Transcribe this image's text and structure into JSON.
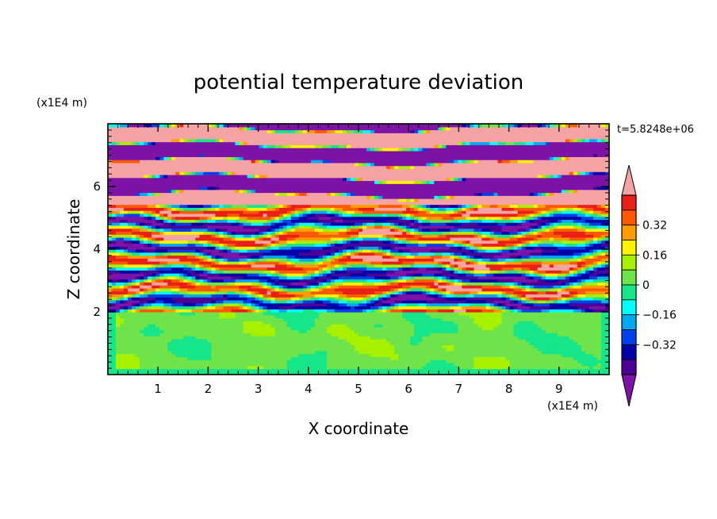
{
  "chart_data": {
    "type": "heatmap",
    "title": "potential temperature deviation",
    "time_label": "t=5.8248e+06",
    "xlabel": "X coordinate",
    "ylabel": "Z coordinate",
    "x_unit": "(x1E4 m)",
    "y_unit": "(x1E4 m)",
    "xlim": [
      0,
      10
    ],
    "ylim": [
      0,
      8
    ],
    "x_ticks": [
      "1",
      "2",
      "3",
      "4",
      "5",
      "6",
      "7",
      "8",
      "9"
    ],
    "y_ticks": [
      "2",
      "4",
      "6"
    ],
    "colorbar": {
      "levels": [
        -0.48,
        -0.4,
        -0.32,
        -0.24,
        -0.16,
        -0.08,
        0,
        0.08,
        0.16,
        0.24,
        0.32,
        0.4,
        0.48
      ],
      "tick_labels": [
        "0.32",
        "0.16",
        "0",
        "−0.16",
        "−0.32"
      ],
      "tick_values": [
        0.32,
        0.16,
        0,
        -0.16,
        -0.32
      ],
      "colors_high_to_low": [
        "#F5A3A3",
        "#E82018",
        "#FF5A00",
        "#FF9D00",
        "#FFF200",
        "#A6F000",
        "#6EE44A",
        "#16E58A",
        "#00FFFF",
        "#00A8F0",
        "#0040E8",
        "#0000A8",
        "#4B0096",
        "#7C13A6"
      ]
    },
    "bands": [
      {
        "z_range": [
          0,
          2.0
        ],
        "character": "near-neutral deviation (green / light-green) with teal blobs"
      },
      {
        "z_range": [
          2.0,
          5.5
        ],
        "character": "strongly mixed layers, alternating ±0.4 (red/yellow/cyan/blue)"
      },
      {
        "z_range": [
          5.5,
          8.0
        ],
        "character": "alternating horizontal layers of extreme values (pink > 0.48, purple < -0.48)"
      }
    ]
  }
}
